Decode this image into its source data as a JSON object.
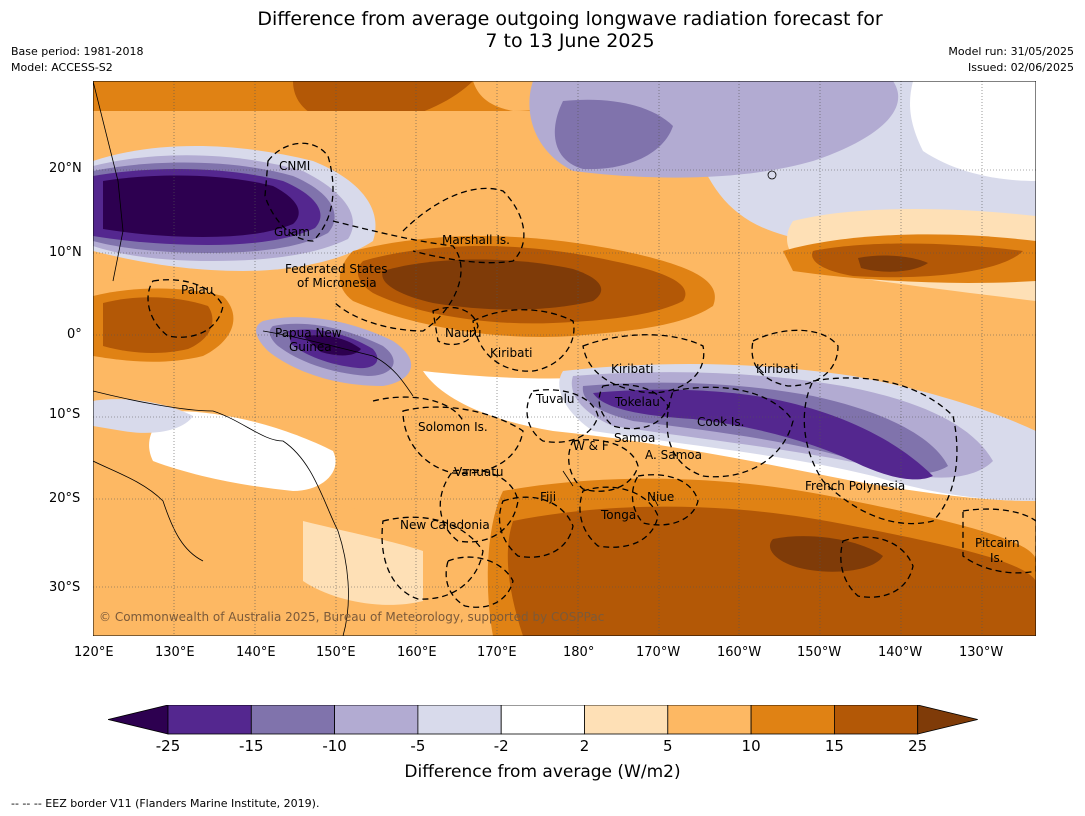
{
  "title_line1": "Difference from average outgoing longwave radiation forecast for",
  "title_line2": "7 to 13 June 2025",
  "base_period": "Base period: 1981-2018",
  "model": "Model: ACCESS-S2",
  "model_run": "Model run: 31/05/2025",
  "issued": "Issued: 02/06/2025",
  "lon_ticks": [
    "120°E",
    "130°E",
    "140°E",
    "150°E",
    "160°E",
    "170°E",
    "180°",
    "170°W",
    "160°W",
    "150°W",
    "140°W",
    "130°W"
  ],
  "lat_ticks": [
    "20°N",
    "10°N",
    "0°",
    "10°S",
    "20°S",
    "30°S"
  ],
  "region_labels": [
    "CNMI",
    "Guam",
    "Marshall Is.",
    "Federated States",
    "of Micronesia",
    "Palau",
    "Papua New",
    "Guinea",
    "Nauru",
    "Kiribati",
    "Kiribati",
    "Kiribati",
    "Tuvalu",
    "Tokelau",
    "Cook Is.",
    "Solomon Is.",
    "Samoa",
    "W & F",
    "A. Samoa",
    "Vanuatu",
    "Fiji",
    "Niue",
    "Tonga",
    "French Polynesia",
    "New Caledonia",
    "Pitcairn",
    "Is."
  ],
  "copyright": "© Commonwealth of Australia 2025, Bureau of Meteorology, supported by COSPPac",
  "colorbar": {
    "title": "Difference from average (W/m2)",
    "tick_labels": [
      "-25",
      "-15",
      "-10",
      "-5",
      "-2",
      "2",
      "5",
      "10",
      "15",
      "25"
    ],
    "colors": [
      "#2d0050",
      "#54278f",
      "#8073ac",
      "#b2abd2",
      "#d8daeb",
      "#ffffff",
      "#fee0b6",
      "#fdb863",
      "#e08214",
      "#b35806",
      "#7f3b08"
    ]
  },
  "footer": "--  --  -- EEZ border V11 (Flanders Marine Institute, 2019)."
}
